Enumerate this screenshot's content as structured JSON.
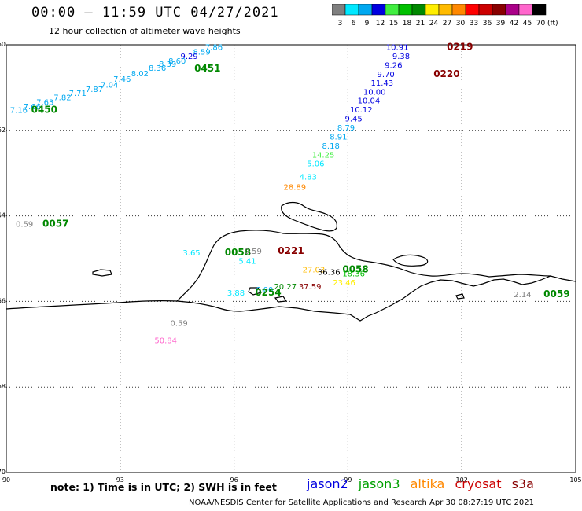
{
  "header": {
    "title": "00:00 – 11:59 UTC 04/27/2021",
    "subtitle": "12 hour collection of altimeter wave heights"
  },
  "scale": {
    "unit_label": "(ft)",
    "steps": [
      {
        "label": "3",
        "color": "#7f7f7f"
      },
      {
        "label": "6",
        "color": "#00e8ff"
      },
      {
        "label": "9",
        "color": "#00a8f0"
      },
      {
        "label": "12",
        "color": "#0000e0"
      },
      {
        "label": "15",
        "color": "#40ee40"
      },
      {
        "label": "18",
        "color": "#00c000"
      },
      {
        "label": "21",
        "color": "#008800"
      },
      {
        "label": "24",
        "color": "#ffee00"
      },
      {
        "label": "27",
        "color": "#ffbb00"
      },
      {
        "label": "30",
        "color": "#ff8800"
      },
      {
        "label": "33",
        "color": "#ff0000"
      },
      {
        "label": "36",
        "color": "#cc0000"
      },
      {
        "label": "39",
        "color": "#880000"
      },
      {
        "label": "42",
        "color": "#aa0088"
      },
      {
        "label": "45",
        "color": "#ff66cc"
      },
      {
        "label": "70",
        "color": "#000000"
      }
    ]
  },
  "map": {
    "lon_range": [
      90,
      105
    ],
    "lat_range": [
      -70,
      -60
    ],
    "x_ticks": [
      "90",
      "93",
      "96",
      "99",
      "102",
      "105"
    ],
    "y_ticks": [
      "-60",
      "-62",
      "-64",
      "-66",
      "-68",
      "-70"
    ],
    "observations": [
      {
        "text": "7.86",
        "lon": 95.47,
        "lat": -60.05,
        "color": "#00a8f0"
      },
      {
        "text": "8.59",
        "lon": 95.15,
        "lat": -60.16,
        "color": "#00a8f0"
      },
      {
        "text": "9.29",
        "lon": 94.82,
        "lat": -60.26,
        "color": "#0000e0"
      },
      {
        "text": "8.60",
        "lon": 94.5,
        "lat": -60.37,
        "color": "#00a8f0"
      },
      {
        "text": "8.39",
        "lon": 94.25,
        "lat": -60.44,
        "color": "#00a8f0"
      },
      {
        "text": "8.36",
        "lon": 93.98,
        "lat": -60.53,
        "color": "#00a8f0"
      },
      {
        "text": "8.02",
        "lon": 93.52,
        "lat": -60.66,
        "color": "#00a8f0"
      },
      {
        "text": "7.46",
        "lon": 93.05,
        "lat": -60.79,
        "color": "#00a8f0"
      },
      {
        "text": "7.04",
        "lon": 92.72,
        "lat": -60.93,
        "color": "#00a8f0"
      },
      {
        "text": "7.87",
        "lon": 92.32,
        "lat": -61.03,
        "color": "#00a8f0"
      },
      {
        "text": "7.71",
        "lon": 91.88,
        "lat": -61.12,
        "color": "#00a8f0"
      },
      {
        "text": "7.82",
        "lon": 91.48,
        "lat": -61.22,
        "color": "#00a8f0"
      },
      {
        "text": "7.63",
        "lon": 91.02,
        "lat": -61.33,
        "color": "#00a8f0"
      },
      {
        "text": "7.66",
        "lon": 90.68,
        "lat": -61.43,
        "color": "#00a8f0"
      },
      {
        "text": "7.16",
        "lon": 90.33,
        "lat": -61.52,
        "color": "#00a8f0"
      },
      {
        "text": "0450",
        "lon": 91.0,
        "lat": -61.52,
        "color": "#008800",
        "bold": true
      },
      {
        "text": "0451",
        "lon": 95.3,
        "lat": -60.55,
        "color": "#008800",
        "bold": true
      },
      {
        "text": "10.91",
        "lon": 100.3,
        "lat": -60.05,
        "color": "#0000e0"
      },
      {
        "text": "0219",
        "lon": 101.95,
        "lat": -60.05,
        "color": "#880000",
        "bold": true
      },
      {
        "text": "9.38",
        "lon": 100.4,
        "lat": -60.26,
        "color": "#0000e0"
      },
      {
        "text": "9.26",
        "lon": 100.2,
        "lat": -60.47,
        "color": "#0000e0"
      },
      {
        "text": "9.70",
        "lon": 100.0,
        "lat": -60.68,
        "color": "#0000e0"
      },
      {
        "text": "0220",
        "lon": 101.6,
        "lat": -60.68,
        "color": "#880000",
        "bold": true
      },
      {
        "text": "11.43",
        "lon": 99.9,
        "lat": -60.88,
        "color": "#0000e0"
      },
      {
        "text": "10.00",
        "lon": 99.7,
        "lat": -61.09,
        "color": "#0000e0"
      },
      {
        "text": "10.04",
        "lon": 99.55,
        "lat": -61.3,
        "color": "#0000e0"
      },
      {
        "text": "10.12",
        "lon": 99.35,
        "lat": -61.51,
        "color": "#0000e0"
      },
      {
        "text": "9.45",
        "lon": 99.15,
        "lat": -61.72,
        "color": "#0000e0"
      },
      {
        "text": "8.79",
        "lon": 98.95,
        "lat": -61.93,
        "color": "#00a8f0"
      },
      {
        "text": "8.91",
        "lon": 98.75,
        "lat": -62.14,
        "color": "#00a8f0"
      },
      {
        "text": "8.18",
        "lon": 98.55,
        "lat": -62.35,
        "color": "#00a8f0"
      },
      {
        "text": "14.25",
        "lon": 98.35,
        "lat": -62.56,
        "color": "#40ee40"
      },
      {
        "text": "5.06",
        "lon": 98.15,
        "lat": -62.77,
        "color": "#00e8ff"
      },
      {
        "text": "4.83",
        "lon": 97.95,
        "lat": -63.08,
        "color": "#00e8ff"
      },
      {
        "text": "28.89",
        "lon": 97.6,
        "lat": -63.32,
        "color": "#ff8800"
      },
      {
        "text": "0.59",
        "lon": 90.48,
        "lat": -64.18,
        "color": "#7f7f7f"
      },
      {
        "text": "0057",
        "lon": 91.3,
        "lat": -64.18,
        "color": "#008800",
        "bold": true
      },
      {
        "text": "3.65",
        "lon": 94.88,
        "lat": -64.85,
        "color": "#00e8ff"
      },
      {
        "text": "0058",
        "lon": 96.1,
        "lat": -64.85,
        "color": "#008800",
        "bold": true
      },
      {
        "text": "0.59",
        "lon": 96.5,
        "lat": -64.82,
        "color": "#7f7f7f"
      },
      {
        "text": "0221",
        "lon": 97.5,
        "lat": -64.82,
        "color": "#880000",
        "bold": true
      },
      {
        "text": "5.41",
        "lon": 96.35,
        "lat": -65.05,
        "color": "#00e8ff"
      },
      {
        "text": "27.03",
        "lon": 98.1,
        "lat": -65.25,
        "color": "#ffbb00"
      },
      {
        "text": "36.36",
        "lon": 98.5,
        "lat": -65.3,
        "color": "#000000"
      },
      {
        "text": "0058",
        "lon": 99.2,
        "lat": -65.25,
        "color": "#008800",
        "bold": true
      },
      {
        "text": "18.36",
        "lon": 99.15,
        "lat": -65.34,
        "color": "#00c000"
      },
      {
        "text": "23.46",
        "lon": 98.9,
        "lat": -65.55,
        "color": "#ffee00"
      },
      {
        "text": "20.27",
        "lon": 97.35,
        "lat": -65.64,
        "color": "#008800"
      },
      {
        "text": "37.59",
        "lon": 98.0,
        "lat": -65.64,
        "color": "#880000"
      },
      {
        "text": "6.00",
        "lon": 96.8,
        "lat": -65.72,
        "color": "#00a8f0"
      },
      {
        "text": "0254",
        "lon": 96.9,
        "lat": -65.79,
        "color": "#008800",
        "bold": true
      },
      {
        "text": "3.88",
        "lon": 96.05,
        "lat": -65.79,
        "color": "#00e8ff"
      },
      {
        "text": "2.14",
        "lon": 103.6,
        "lat": -65.83,
        "color": "#7f7f7f"
      },
      {
        "text": "0059",
        "lon": 104.5,
        "lat": -65.83,
        "color": "#008800",
        "bold": true
      },
      {
        "text": "0.59",
        "lon": 94.55,
        "lat": -66.5,
        "color": "#7f7f7f"
      },
      {
        "text": "50.84",
        "lon": 94.2,
        "lat": -66.9,
        "color": "#ff66cc"
      }
    ]
  },
  "footer": {
    "note": "note: 1) Time is in UTC; 2) SWH is in feet",
    "satellites": [
      {
        "name": "jason2",
        "color": "#0000e0"
      },
      {
        "name": "jason3",
        "color": "#00a000"
      },
      {
        "name": "altika",
        "color": "#ff8800"
      },
      {
        "name": "cryosat",
        "color": "#cc0000"
      },
      {
        "name": "s3a",
        "color": "#880000"
      }
    ],
    "credit": "NOAA/NESDIS Center for Satellite Applications and Research    Apr 30 08:27:19 UTC 2021"
  }
}
